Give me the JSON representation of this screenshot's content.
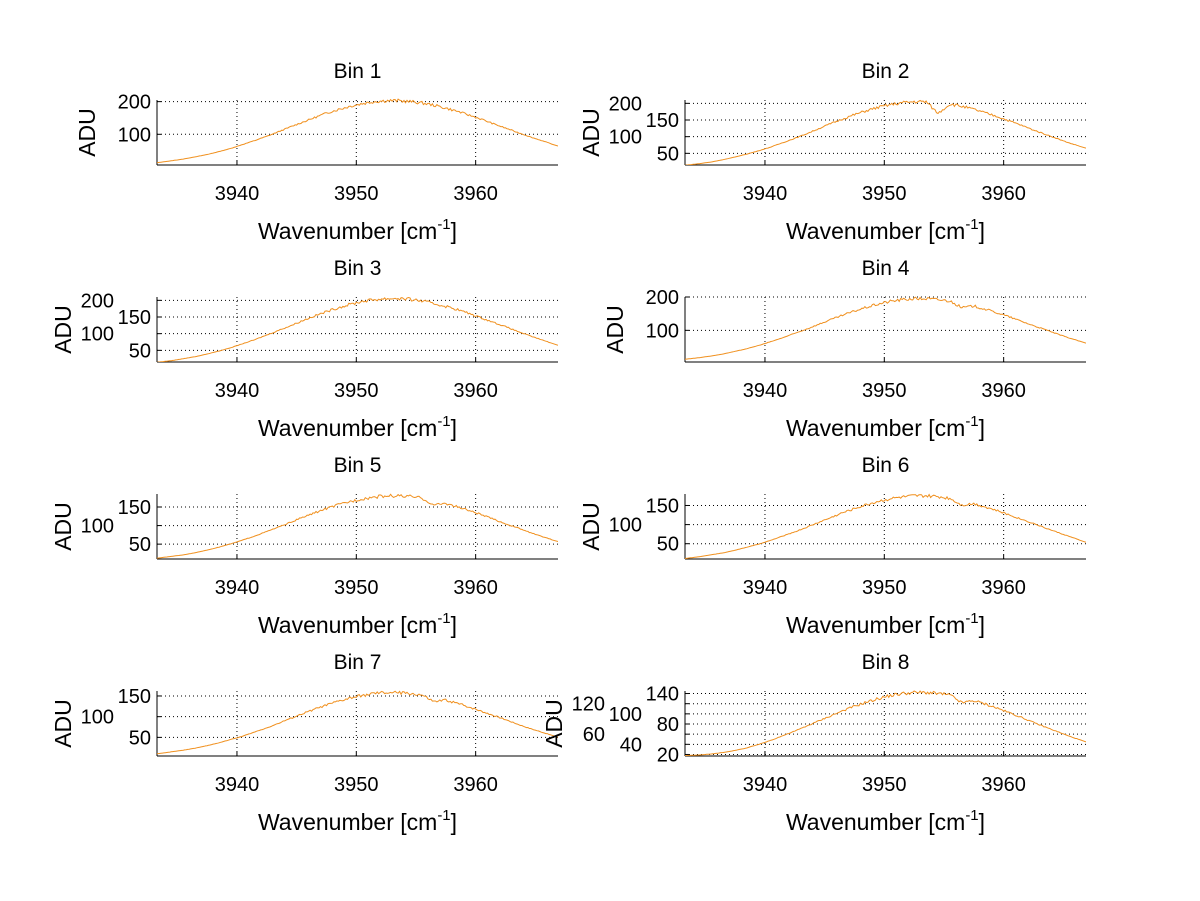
{
  "chart_data": {
    "type": "line",
    "layout": "4x2 subplots",
    "line_color": "#f0901e",
    "x": [
      3933.5,
      3934.5,
      3935.5,
      3936.5,
      3937.5,
      3938.5,
      3939.5,
      3940.5,
      3941.5,
      3942.5,
      3943.5,
      3944.5,
      3945.5,
      3946.5,
      3947.5,
      3948.5,
      3949.5,
      3950.5,
      3951.5,
      3952.5,
      3953.5,
      3954.5,
      3955.5,
      3956.5,
      3957.5,
      3958.5,
      3959.5,
      3960.5,
      3961.5,
      3962.5,
      3963.5,
      3964.5,
      3965.5,
      3966.5
    ],
    "xlim": [
      3933.3,
      3966.9
    ],
    "xticks": [
      3940,
      3950,
      3960
    ],
    "xlabel": "Wavenumber [cm",
    "xlabel_sup": "-1",
    "xlabel_close": "]",
    "ylabel": "ADU",
    "grid": true,
    "panels": [
      {
        "title": "Bin 1",
        "ylim": [
          6,
          205
        ],
        "yticks": [
          100,
          200
        ],
        "values": [
          14,
          19,
          24,
          31,
          38,
          47,
          57,
          69,
          81,
          94,
          108,
          123,
          137,
          151,
          165,
          176,
          186,
          194,
          200,
          203,
          203,
          200,
          196,
          189,
          180,
          170,
          158,
          146,
          132,
          119,
          106,
          93,
          81,
          69
        ]
      },
      {
        "title": "Bin 2",
        "ylim": [
          15,
          210
        ],
        "yticks": [
          50,
          100,
          150,
          200
        ],
        "values": [
          15,
          19,
          24,
          31,
          39,
          48,
          58,
          69,
          82,
          95,
          109,
          124,
          139,
          153,
          166,
          178,
          188,
          196,
          202,
          205,
          205,
          170,
          198,
          191,
          182,
          171,
          160,
          147,
          134,
          120,
          107,
          94,
          81,
          70
        ]
      },
      {
        "title": "Bin 3",
        "ylim": [
          15,
          210
        ],
        "yticks": [
          50,
          100,
          150,
          200
        ],
        "values": [
          15,
          19,
          25,
          31,
          39,
          48,
          58,
          70,
          82,
          96,
          110,
          124,
          139,
          153,
          166,
          178,
          188,
          197,
          202,
          205,
          206,
          203,
          198,
          190,
          182,
          172,
          160,
          147,
          134,
          121,
          107,
          94,
          82,
          70
        ]
      },
      {
        "title": "Bin 4",
        "ylim": [
          5,
          200
        ],
        "yticks": [
          100,
          200
        ],
        "values": [
          14,
          18,
          23,
          29,
          37,
          45,
          55,
          66,
          78,
          91,
          104,
          118,
          132,
          145,
          158,
          169,
          179,
          187,
          192,
          195,
          195,
          192,
          188,
          168,
          173,
          163,
          152,
          140,
          127,
          114,
          102,
          89,
          77,
          66
        ]
      },
      {
        "title": "Bin 5",
        "ylim": [
          10,
          185
        ],
        "yticks": [
          50,
          100,
          150
        ],
        "values": [
          13,
          17,
          21,
          27,
          34,
          42,
          51,
          61,
          72,
          84,
          96,
          109,
          122,
          134,
          146,
          156,
          165,
          172,
          177,
          180,
          180,
          178,
          174,
          155,
          160,
          150,
          140,
          129,
          117,
          105,
          94,
          82,
          71,
          61
        ]
      },
      {
        "title": "Bin 6",
        "ylim": [
          10,
          180
        ],
        "yticks": [
          50,
          100,
          150
        ],
        "values": [
          12,
          16,
          21,
          26,
          33,
          41,
          49,
          59,
          70,
          81,
          93,
          106,
          118,
          131,
          142,
          152,
          161,
          168,
          172,
          175,
          175,
          173,
          169,
          151,
          155,
          146,
          136,
          125,
          114,
          103,
          91,
          80,
          69,
          58
        ]
      },
      {
        "title": "Bin 7",
        "ylim": [
          5,
          162
        ],
        "yticks": [
          50,
          100,
          150
        ],
        "values": [
          11,
          15,
          19,
          24,
          30,
          37,
          45,
          53,
          63,
          73,
          84,
          96,
          107,
          118,
          128,
          137,
          145,
          151,
          156,
          158,
          158,
          156,
          152,
          136,
          140,
          132,
          123,
          113,
          103,
          93,
          82,
          72,
          63,
          54
        ]
      },
      {
        "title": "Bin 8",
        "ylim": [
          17,
          145
        ],
        "yticks": [
          20,
          40,
          60,
          80,
          100,
          120,
          140
        ],
        "values": [
          18,
          19,
          21,
          24,
          28,
          33,
          40,
          48,
          57,
          66,
          76,
          86,
          96,
          106,
          115,
          123,
          130,
          136,
          140,
          142,
          142,
          140,
          137,
          122,
          126,
          119,
          111,
          102,
          93,
          83,
          74,
          65,
          56,
          48
        ]
      }
    ]
  }
}
